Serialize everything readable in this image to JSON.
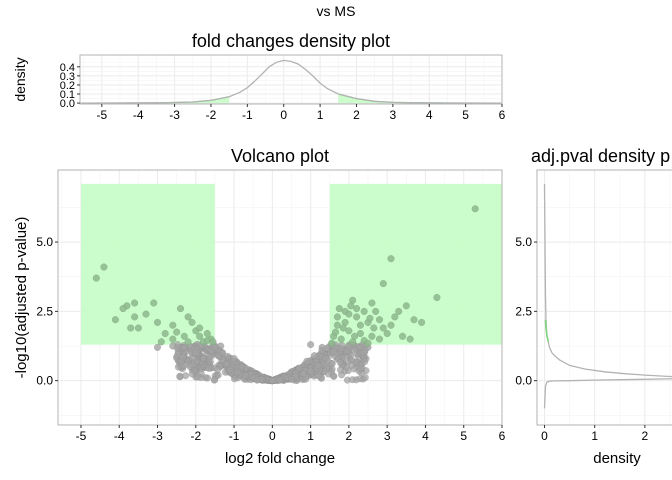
{
  "figure": {
    "title": "vs MS"
  },
  "chart_data": [
    {
      "panel": "top",
      "type": "line",
      "title": "fold changes density plot",
      "xlabel": "",
      "ylabel": "density",
      "xlim": [
        -5.6,
        6.0
      ],
      "ylim": [
        -0.01,
        0.53
      ],
      "x_ticks": [
        -5,
        -4,
        -3,
        -2,
        -1,
        0,
        1,
        2,
        3,
        4,
        5,
        6
      ],
      "y_ticks": [
        0.0,
        0.1,
        0.2,
        0.3,
        0.4
      ],
      "y_tick_labels": [
        "0.0",
        "0.1",
        "0.2",
        "0.3",
        "0.4"
      ],
      "grid": true,
      "series": [
        {
          "x": [
            -5.6,
            -4.5,
            -3.5,
            -3,
            -2.5,
            -2,
            -1.5,
            -1.2,
            -1,
            -0.8,
            -0.6,
            -0.4,
            -0.2,
            0,
            0.2,
            0.4,
            0.6,
            0.8,
            1,
            1.2,
            1.5,
            2,
            2.5,
            3,
            3.5,
            4.5,
            6
          ],
          "y": [
            0.0,
            0.001,
            0.003,
            0.006,
            0.012,
            0.03,
            0.07,
            0.12,
            0.17,
            0.24,
            0.32,
            0.4,
            0.45,
            0.47,
            0.46,
            0.43,
            0.37,
            0.3,
            0.22,
            0.16,
            0.1,
            0.05,
            0.02,
            0.008,
            0.004,
            0.001,
            0.0
          ]
        }
      ],
      "highlight": [
        {
          "x": [
            -5.6,
            -4.5,
            -3.5,
            -3,
            -2.5,
            -2,
            -1.5
          ],
          "y": [
            0.0,
            0.001,
            0.003,
            0.006,
            0.012,
            0.03,
            0.07
          ]
        },
        {
          "x": [
            1.5,
            2,
            2.5,
            3,
            3.5,
            4.5,
            6
          ],
          "y": [
            0.1,
            0.05,
            0.02,
            0.008,
            0.004,
            0.001,
            0.0
          ]
        }
      ]
    },
    {
      "panel": "main",
      "type": "scatter",
      "title": "Volcano plot",
      "xlabel": "log2 fold change",
      "ylabel": "-log10(adjusted p-value)",
      "xlim": [
        -5.6,
        6.0
      ],
      "ylim": [
        -1.6,
        7.6
      ],
      "x_ticks": [
        -5,
        -4,
        -3,
        -2,
        -1,
        0,
        1,
        2,
        3,
        4,
        5,
        6
      ],
      "y_ticks": [
        0.0,
        2.5,
        5.0
      ],
      "y_tick_labels": [
        "0.0",
        "2.5",
        "5.0"
      ],
      "grid": true,
      "highlight_regions": [
        {
          "x": [
            -5,
            -1.5
          ],
          "y": [
            1.3,
            7.1
          ]
        },
        {
          "x": [
            1.5,
            6
          ],
          "y": [
            1.3,
            7.1
          ]
        }
      ],
      "points_significant": [
        [
          -4.4,
          4.1
        ],
        [
          -4.6,
          3.7
        ],
        [
          -3.6,
          2.8
        ],
        [
          -3.8,
          2.7
        ],
        [
          -3.9,
          2.6
        ],
        [
          -3.6,
          2.3
        ],
        [
          -4.1,
          2.2
        ],
        [
          -3.1,
          2.8
        ],
        [
          -3.3,
          2.4
        ],
        [
          -2.4,
          2.6
        ],
        [
          -3.0,
          2.1
        ],
        [
          -2.2,
          2.3
        ],
        [
          -2.1,
          2.1
        ],
        [
          -3.5,
          1.9
        ],
        [
          -3.7,
          1.9
        ],
        [
          -2.6,
          2.0
        ],
        [
          -2.8,
          1.7
        ],
        [
          -2.6,
          1.5
        ],
        [
          -2.3,
          1.6
        ],
        [
          -2.0,
          1.8
        ],
        [
          -1.9,
          1.6
        ],
        [
          -1.7,
          1.7
        ],
        [
          -1.8,
          1.4
        ],
        [
          -1.6,
          1.5
        ],
        [
          -2.2,
          1.4
        ],
        [
          -1.9,
          1.9
        ],
        [
          -1.7,
          1.45
        ],
        [
          -2.9,
          1.4
        ],
        [
          -1.55,
          1.4
        ],
        [
          -2.5,
          1.75
        ],
        [
          5.3,
          6.2
        ],
        [
          3.1,
          4.4
        ],
        [
          2.9,
          3.5
        ],
        [
          4.3,
          3.0
        ],
        [
          3.5,
          2.7
        ],
        [
          2.1,
          2.9
        ],
        [
          2.6,
          2.8
        ],
        [
          3.3,
          2.5
        ],
        [
          3.7,
          2.2
        ],
        [
          3.1,
          2.0
        ],
        [
          2.2,
          2.3
        ],
        [
          2.5,
          2.1
        ],
        [
          2.8,
          2.2
        ],
        [
          1.9,
          2.1
        ],
        [
          1.7,
          2.0
        ],
        [
          2.0,
          1.8
        ],
        [
          2.3,
          1.7
        ],
        [
          2.6,
          1.6
        ],
        [
          1.6,
          1.6
        ],
        [
          1.8,
          1.5
        ],
        [
          2.1,
          1.4
        ],
        [
          2.4,
          1.45
        ],
        [
          2.8,
          1.5
        ],
        [
          3.0,
          1.7
        ],
        [
          3.4,
          1.6
        ],
        [
          1.55,
          1.35
        ],
        [
          1.9,
          2.5
        ],
        [
          2.2,
          2.6
        ],
        [
          1.7,
          2.3
        ],
        [
          2.7,
          2.5
        ],
        [
          3.2,
          2.3
        ],
        [
          2.0,
          2.4
        ],
        [
          2.4,
          2.5
        ],
        [
          2.9,
          1.9
        ],
        [
          1.65,
          1.75
        ],
        [
          1.85,
          1.9
        ],
        [
          2.5,
          1.35
        ],
        [
          3.6,
          1.5
        ],
        [
          2.3,
          2.0
        ],
        [
          1.75,
          2.6
        ],
        [
          2.05,
          2.7
        ],
        [
          2.55,
          2.25
        ],
        [
          3.9,
          2.1
        ],
        [
          2.15,
          1.6
        ],
        [
          2.65,
          1.9
        ]
      ],
      "points_other": [
        [
          -1.2,
          0.6
        ],
        [
          -1.4,
          0.9
        ],
        [
          -1.6,
          1.1
        ],
        [
          -2.0,
          1.0
        ],
        [
          -1.8,
          0.8
        ],
        [
          -1.1,
          0.4
        ],
        [
          -0.9,
          0.3
        ],
        [
          -0.7,
          0.2
        ],
        [
          -0.5,
          0.1
        ],
        [
          -0.3,
          0.05
        ],
        [
          0,
          0
        ],
        [
          0.2,
          0.02
        ],
        [
          0.4,
          0.1
        ],
        [
          0.6,
          0.15
        ],
        [
          0.8,
          0.25
        ],
        [
          1.0,
          0.35
        ],
        [
          1.2,
          0.55
        ],
        [
          1.4,
          0.8
        ],
        [
          1.6,
          1.05
        ],
        [
          1.8,
          1.15
        ],
        [
          -1.5,
          1.2
        ],
        [
          -1.3,
          1.0
        ],
        [
          1.3,
          1.1
        ],
        [
          1.1,
          0.9
        ],
        [
          0.9,
          0.7
        ],
        [
          -0.8,
          0.5
        ],
        [
          -2.3,
          1.2
        ],
        [
          2.0,
          1.25
        ],
        [
          -3.0,
          1.2
        ],
        [
          2.5,
          1.2
        ],
        [
          -0.4,
          0.02
        ],
        [
          0.5,
          0.05
        ],
        [
          1.3,
          1.2
        ],
        [
          -1.0,
          0.8
        ],
        [
          0.7,
          0.45
        ],
        [
          1.0,
          1.3
        ],
        [
          -2.6,
          1.25
        ],
        [
          -1.35,
          1.25
        ]
      ]
    },
    {
      "panel": "right",
      "type": "line",
      "title": "adj.pval density p",
      "xlabel": "density",
      "ylabel": "",
      "xlim": [
        -0.15,
        2.9
      ],
      "ylim": [
        -1.6,
        7.6
      ],
      "x_ticks": [
        0,
        1,
        2
      ],
      "y_ticks": [
        0.0,
        2.5,
        5.0
      ],
      "y_tick_labels": [
        "0.0",
        "2.5",
        "5.0"
      ],
      "grid": true,
      "series": [
        {
          "x": [
            0.0,
            0.01,
            0.02,
            0.03,
            0.05,
            0.1,
            0.15,
            0.2,
            0.3,
            0.5,
            0.8,
            1.2,
            1.6,
            2.0,
            2.5,
            2.9
          ],
          "y": [
            7.1,
            5.0,
            3.0,
            2.2,
            1.6,
            1.2,
            1.0,
            0.9,
            0.75,
            0.55,
            0.42,
            0.32,
            0.25,
            0.2,
            0.15,
            0.12
          ]
        },
        {
          "x": [
            0.0,
            0.02,
            0.05,
            0.1,
            0.2,
            0.5,
            1.0,
            2.0,
            2.9
          ],
          "y": [
            -1.0,
            -0.2,
            -0.05,
            -0.02,
            -0.01,
            0.0,
            0.02,
            0.05,
            0.08
          ]
        }
      ],
      "highlight": [
        {
          "x": [
            0.02,
            0.03,
            0.05,
            0.08
          ],
          "y": [
            2.2,
            1.9,
            1.6,
            1.4
          ]
        }
      ]
    }
  ],
  "colors": {
    "panel_border": "#b3b3b3",
    "grid_major": "#ebebeb",
    "grid_minor": "#f4f4f4",
    "highlight_fill": "#c8fcc8",
    "point_significant": "#8fb98f",
    "point_significant_stroke": "#7aa87a",
    "point_other": "#a3a3a3",
    "point_other_stroke": "#8c8c8c",
    "density_line": "#b3b3b3",
    "density_highlight": "#7fd67f",
    "text": "#000000"
  }
}
